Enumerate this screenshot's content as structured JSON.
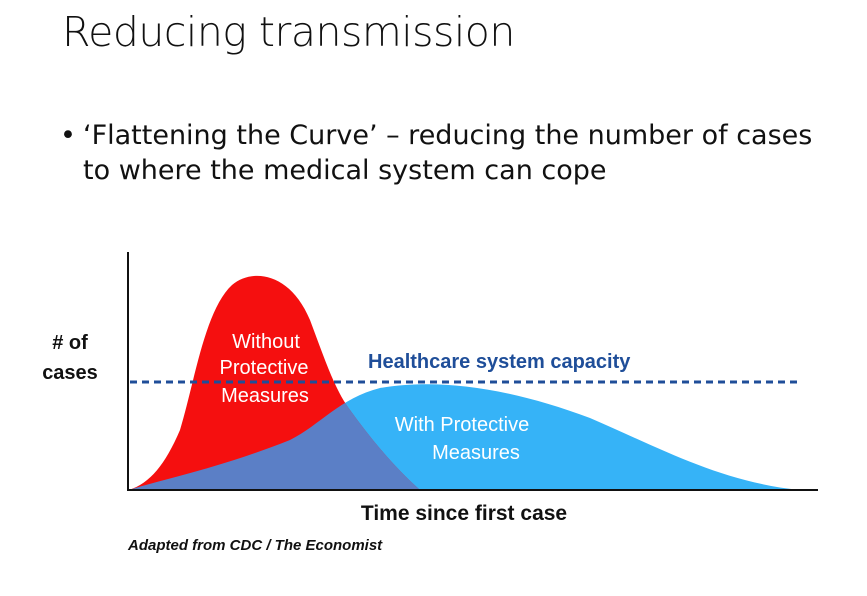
{
  "slide": {
    "title": "Reducing transmission",
    "bullet_text": "‘Flattening the Curve’ – reducing the number of cases to where the medical system can cope"
  },
  "diagram": {
    "y_label_line1": "# of",
    "y_label_line2": "cases",
    "x_label": "Time since first case",
    "capacity_label": "Healthcare system capacity",
    "without_label_line1": "Without",
    "without_label_line2": "Protective",
    "without_label_line3": "Measures",
    "with_label_line1": "With Protective",
    "with_label_line2": "Measures",
    "credit": "Adapted from CDC / The Economist",
    "colors": {
      "without_curve": "#f50f0f",
      "with_curve": "#36b3f7",
      "overlap": "#5b7fc6",
      "capacity_line": "#1f4e99",
      "axis": "#111111"
    }
  }
}
